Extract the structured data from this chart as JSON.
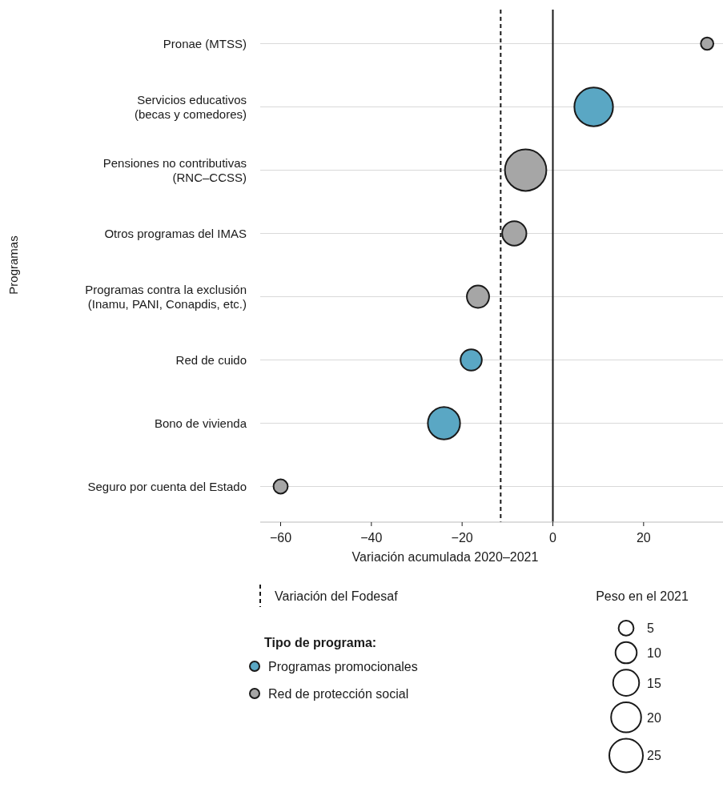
{
  "chart_data": {
    "type": "bubble",
    "orientation": "horizontal",
    "categories": [
      "Pronae (MTSS)",
      "Servicios educativos\n(becas y comedores)",
      "Pensiones no contributivas\n(RNC–CCSS)",
      "Otros programas del IMAS",
      "Programas contra la exclusión\n(Inamu, PANI, Conapdis, etc.)",
      "Red de cuido",
      "Bono de vivienda",
      "Seguro por cuenta del Estado"
    ],
    "series": [
      {
        "name": "Programas promocionales",
        "color": "#5aa7c4",
        "values": [
          null,
          9,
          null,
          null,
          null,
          -18,
          -24,
          null
        ],
        "sizes": [
          null,
          33,
          null,
          null,
          null,
          10,
          23,
          null
        ]
      },
      {
        "name": "Red de protección social",
        "color": "#a6a6a6",
        "values": [
          34,
          null,
          -6,
          -8.5,
          -16.5,
          null,
          null,
          -60
        ],
        "sizes": [
          3.5,
          null,
          38,
          13,
          11,
          null,
          null,
          4.5
        ]
      }
    ],
    "size_legend": [
      5,
      10,
      15,
      20,
      25
    ],
    "xlim": [
      -64.5,
      37.5
    ],
    "xticks": [
      -60,
      -40,
      -20,
      0,
      20
    ],
    "xlabel": "Variación acumulada 2020–2021",
    "legend_title": "Tipo de programa:",
    "annotations": [
      "Programas",
      "Peso en el 2021"
    ],
    "ref_lines": [
      {
        "axis": "x",
        "value": -11.5,
        "label": "Variación del Fodesaf",
        "line_style": "dashed",
        "color": "#1a1a1a"
      },
      {
        "axis": "x",
        "value": 0,
        "label": null,
        "line_style": "solid",
        "color": "#1a1a1a"
      }
    ],
    "grid": "y",
    "legend": "bottom"
  }
}
